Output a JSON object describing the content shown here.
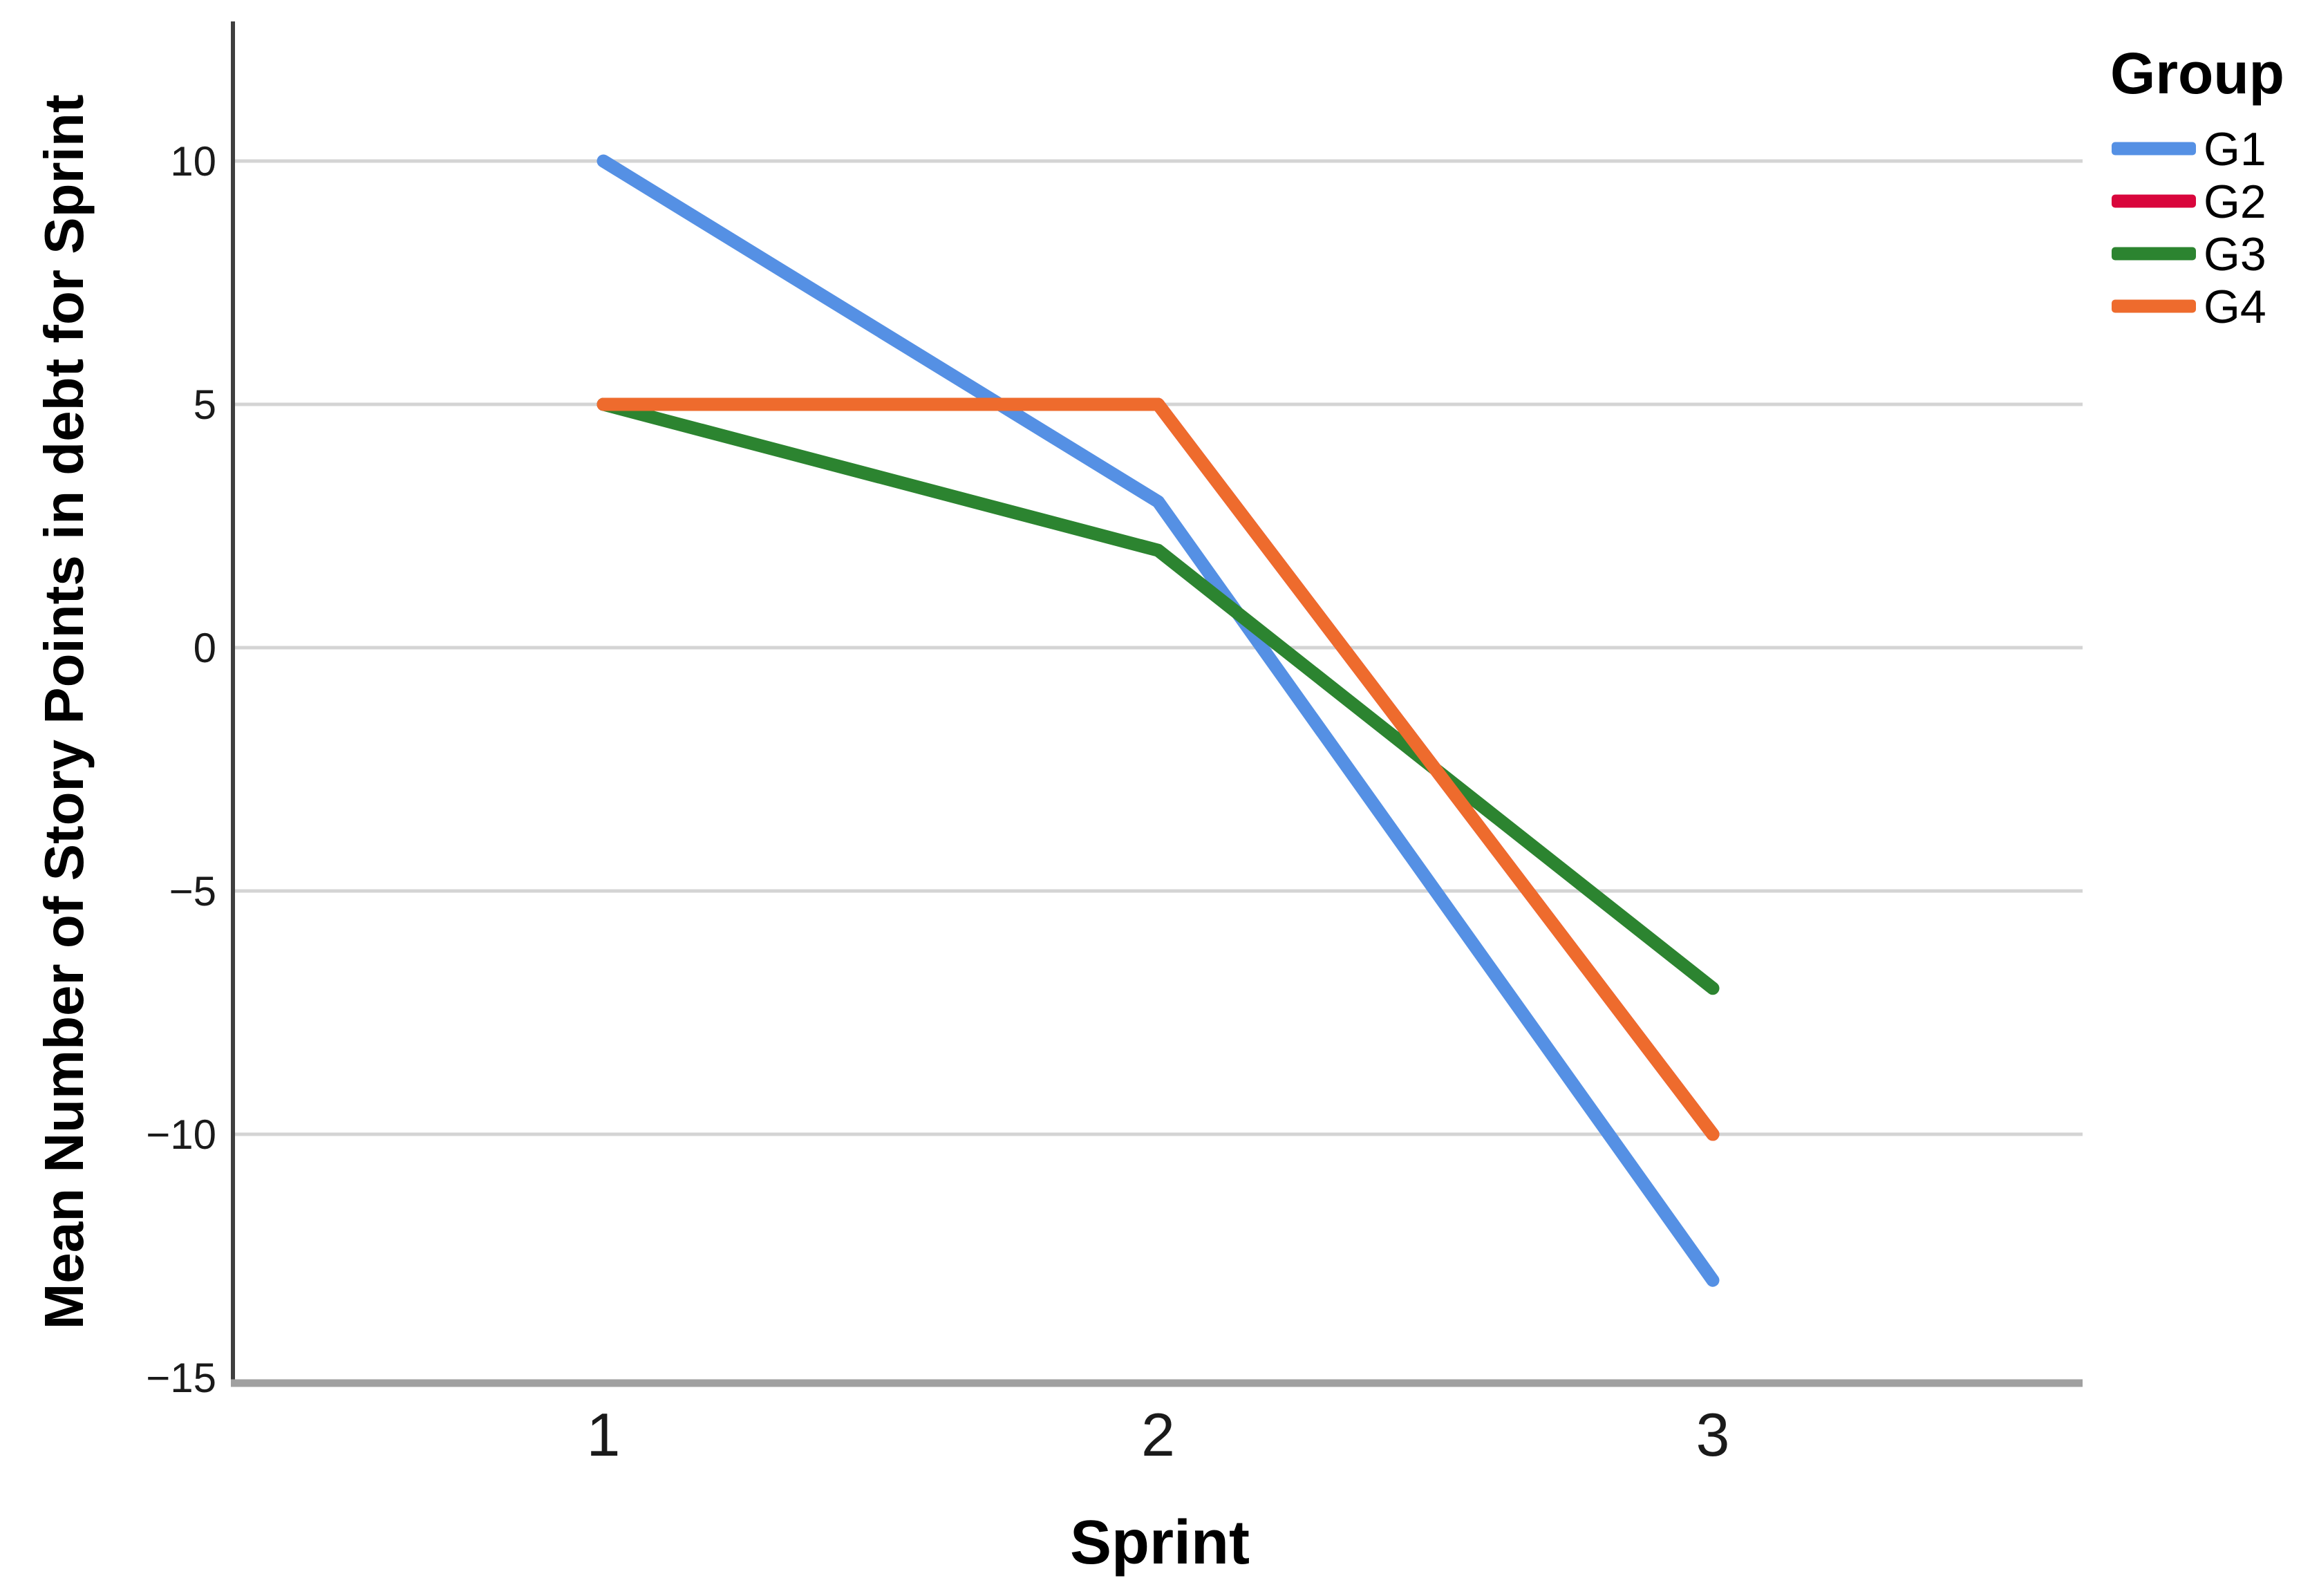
{
  "chart_data": {
    "type": "line",
    "title": "",
    "xlabel": "Sprint",
    "ylabel": "Mean Number of Story Points in debt for Sprint",
    "categories": [
      "1",
      "2",
      "3"
    ],
    "series": [
      {
        "name": "G1",
        "color": "#5590E4",
        "values": [
          10,
          3,
          -13
        ]
      },
      {
        "name": "G2",
        "color": "#D9063C",
        "values": [
          5,
          5,
          -10
        ]
      },
      {
        "name": "G3",
        "color": "#2C8430",
        "values": [
          5,
          2,
          -7
        ]
      },
      {
        "name": "G4",
        "color": "#EE6B2D",
        "values": [
          5,
          5,
          -10
        ]
      }
    ],
    "legend": {
      "title": "Group",
      "position": "top-right",
      "entries": [
        "G1",
        "G2",
        "G3",
        "G4"
      ]
    },
    "y_axis": {
      "ticks": [
        10,
        5,
        0,
        -5,
        -10,
        -15
      ],
      "tick_labels": [
        "10",
        "5",
        "0",
        "−5",
        "−10",
        "−15"
      ],
      "range": [
        -15,
        13
      ]
    },
    "x_axis": {
      "ticks": [
        1,
        2,
        3
      ],
      "tick_labels": [
        "1",
        "2",
        "3"
      ]
    },
    "grid": "horizontal",
    "draw_order_note": "series drawn in listed order, last on top",
    "colors": {
      "gridline": "#D4D4D4",
      "y_axis_line": "#3F3F3F",
      "x_axis_line": "#A0A0A0",
      "tick_text": "#1A1A1A",
      "background": "#FFFFFF"
    }
  }
}
